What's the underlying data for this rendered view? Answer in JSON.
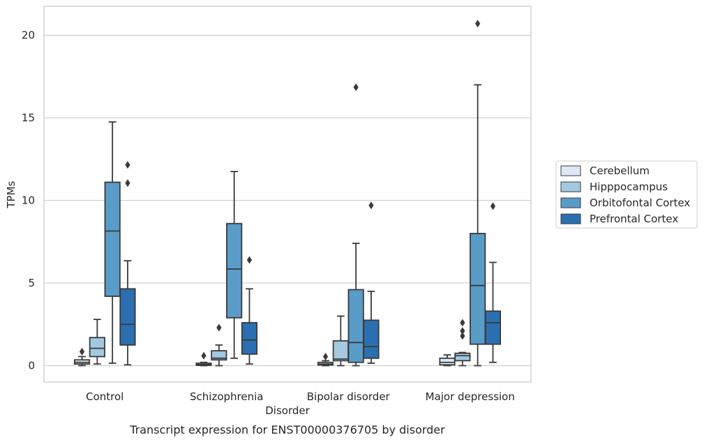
{
  "chart_data": {
    "type": "boxplot",
    "title": "",
    "caption": "Transcript expression for ENST00000376705 by disorder",
    "xlabel": "Disorder",
    "ylabel": "TPMs",
    "ylim": [
      -1,
      21.7
    ],
    "yticks": [
      0,
      5,
      10,
      15,
      20
    ],
    "grid": true,
    "legend_position": "right",
    "categories": [
      "Control",
      "Schizophrenia",
      "Bipolar disorder",
      "Major depression"
    ],
    "series": [
      {
        "name": "Cerebellum",
        "color": "#dce9f5",
        "boxes": [
          {
            "whislo": 0.0,
            "q1": 0.1,
            "med": 0.2,
            "q3": 0.35,
            "whishi": 0.55,
            "fliers": [
              0.85
            ]
          },
          {
            "whislo": 0.0,
            "q1": 0.02,
            "med": 0.07,
            "q3": 0.15,
            "whishi": 0.2,
            "fliers": [
              0.6
            ]
          },
          {
            "whislo": 0.0,
            "q1": 0.04,
            "med": 0.1,
            "q3": 0.2,
            "whishi": 0.3,
            "fliers": [
              0.55
            ]
          },
          {
            "whislo": 0.0,
            "q1": 0.05,
            "med": 0.2,
            "q3": 0.45,
            "whishi": 0.65,
            "fliers": []
          }
        ]
      },
      {
        "name": "Hipppocampus",
        "color": "#a3c9e1",
        "boxes": [
          {
            "whislo": 0.1,
            "q1": 0.55,
            "med": 1.05,
            "q3": 1.7,
            "whishi": 2.8,
            "fliers": []
          },
          {
            "whislo": 0.0,
            "q1": 0.35,
            "med": 0.45,
            "q3": 0.9,
            "whishi": 1.25,
            "fliers": [
              2.3
            ]
          },
          {
            "whislo": 0.0,
            "q1": 0.3,
            "med": 0.4,
            "q3": 1.5,
            "whishi": 3.0,
            "fliers": []
          },
          {
            "whislo": 0.0,
            "q1": 0.3,
            "med": 0.6,
            "q3": 0.75,
            "whishi": 0.8,
            "fliers": [
              1.8,
              2.1,
              2.6
            ]
          }
        ]
      },
      {
        "name": "Orbitofontal Cortex",
        "color": "#5a9cc8",
        "boxes": [
          {
            "whislo": 0.15,
            "q1": 4.2,
            "med": 8.15,
            "q3": 11.1,
            "whishi": 14.75,
            "fliers": []
          },
          {
            "whislo": 0.45,
            "q1": 2.9,
            "med": 5.85,
            "q3": 8.6,
            "whishi": 11.75,
            "fliers": []
          },
          {
            "whislo": 0.0,
            "q1": 0.2,
            "med": 1.4,
            "q3": 4.6,
            "whishi": 7.4,
            "fliers": [
              16.85
            ]
          },
          {
            "whislo": 0.0,
            "q1": 1.3,
            "med": 4.85,
            "q3": 8.0,
            "whishi": 17.0,
            "fliers": [
              20.7
            ]
          }
        ]
      },
      {
        "name": "Prefrontal Cortex",
        "color": "#2b6fb0",
        "boxes": [
          {
            "whislo": 0.05,
            "q1": 1.25,
            "med": 2.5,
            "q3": 4.65,
            "whishi": 6.35,
            "fliers": [
              11.05,
              12.15
            ]
          },
          {
            "whislo": 0.1,
            "q1": 0.7,
            "med": 1.55,
            "q3": 2.6,
            "whishi": 4.65,
            "fliers": [
              6.4
            ]
          },
          {
            "whislo": 0.15,
            "q1": 0.45,
            "med": 1.15,
            "q3": 2.75,
            "whishi": 4.5,
            "fliers": [
              9.7
            ]
          },
          {
            "whislo": 0.2,
            "q1": 1.3,
            "med": 2.6,
            "q3": 3.3,
            "whishi": 6.25,
            "fliers": [
              9.65
            ]
          }
        ]
      }
    ]
  }
}
